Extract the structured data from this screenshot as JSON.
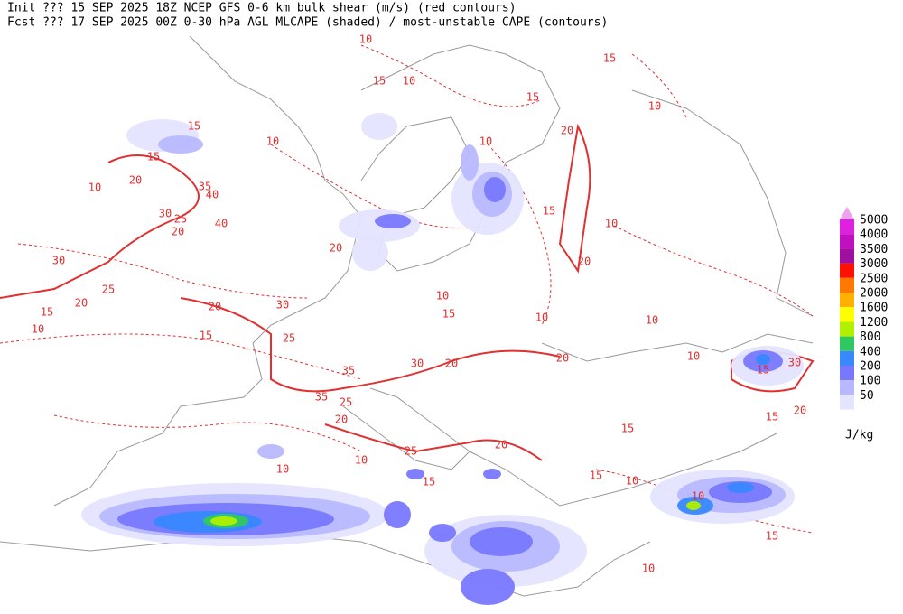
{
  "header": {
    "line1": "Init  ??? 15 SEP 2025 18Z  NCEP GFS 0-6 km bulk shear (m/s) (red contours)",
    "line2": "Fcst ??? 17 SEP 2025 00Z  0-30 hPa AGL MLCAPE (shaded) / most-unstable CAPE (contours)"
  },
  "legend": {
    "top_color": "#f0a0f0",
    "levels": [
      {
        "label": "5000",
        "color": "#e020e0"
      },
      {
        "label": "4000",
        "color": "#c010c0"
      },
      {
        "label": "3500",
        "color": "#a010a0"
      },
      {
        "label": "3000",
        "color": "#ff1000"
      },
      {
        "label": "2500",
        "color": "#ff7800"
      },
      {
        "label": "2000",
        "color": "#ffb000"
      },
      {
        "label": "1600",
        "color": "#ffff00"
      },
      {
        "label": "1200",
        "color": "#b0f000"
      },
      {
        "label": "800",
        "color": "#30c860"
      },
      {
        "label": "400",
        "color": "#3888ff"
      },
      {
        "label": "200",
        "color": "#7878ff"
      },
      {
        "label": "100",
        "color": "#b8b8ff"
      },
      {
        "label": "50",
        "color": "#e4e4ff"
      }
    ],
    "unit": "J/kg"
  },
  "map": {
    "contour_labels": [
      "10",
      "15",
      "15",
      "10",
      "15",
      "10",
      "15",
      "10",
      "10",
      "20",
      "15",
      "10",
      "20",
      "35",
      "40",
      "30",
      "25",
      "40",
      "20",
      "10",
      "15",
      "20",
      "30",
      "20",
      "25",
      "20",
      "15",
      "10",
      "20",
      "30",
      "15",
      "10",
      "10",
      "10",
      "15",
      "25",
      "35",
      "30",
      "20",
      "20",
      "10",
      "30",
      "15",
      "35",
      "25",
      "20",
      "25",
      "20",
      "10",
      "15",
      "20",
      "15",
      "10",
      "15",
      "15",
      "10",
      "10",
      "15",
      "10"
    ]
  }
}
